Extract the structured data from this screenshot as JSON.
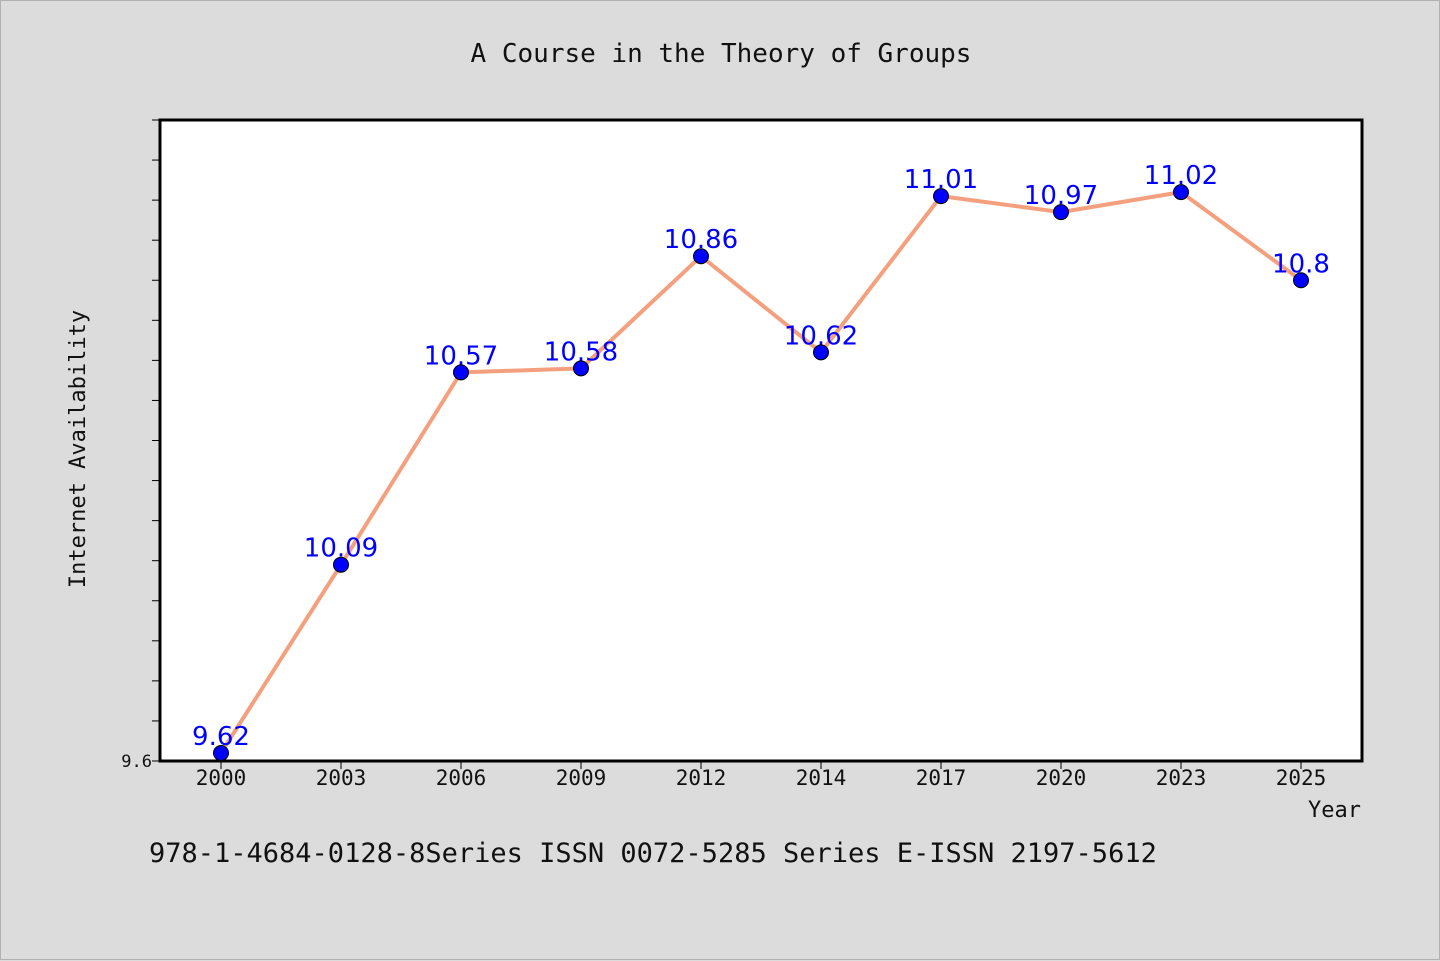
{
  "chart_data": {
    "type": "line",
    "title": "A Course in the Theory of Groups",
    "xlabel": "Year",
    "ylabel": "Internet Availability",
    "x": [
      "2000",
      "2003",
      "2006",
      "2009",
      "2012",
      "2014",
      "2017",
      "2020",
      "2023",
      "2025"
    ],
    "series": [
      {
        "values": [
          9.62,
          10.09,
          10.57,
          10.58,
          10.86,
          10.62,
          11.01,
          10.97,
          11.02,
          10.8
        ],
        "labels": [
          "9.62",
          "10.09",
          "10.57",
          "10.58",
          "10.86",
          "10.62",
          "11.01",
          "10.97",
          "11.02",
          "10.8"
        ]
      }
    ],
    "ylim": [
      9.6,
      11.2
    ],
    "yticks_labeled": [
      "9.6"
    ],
    "grid": false,
    "legend": "none",
    "colors": {
      "line": "#f4a07e",
      "marker": "#0000ff",
      "data_label": "#0000ff",
      "background": "#dcdcdc",
      "plot_area": "#ffffff"
    }
  },
  "footer_text": "978-1-4684-0128-8Series ISSN 0072-5285 Series E-ISSN 2197-5612"
}
